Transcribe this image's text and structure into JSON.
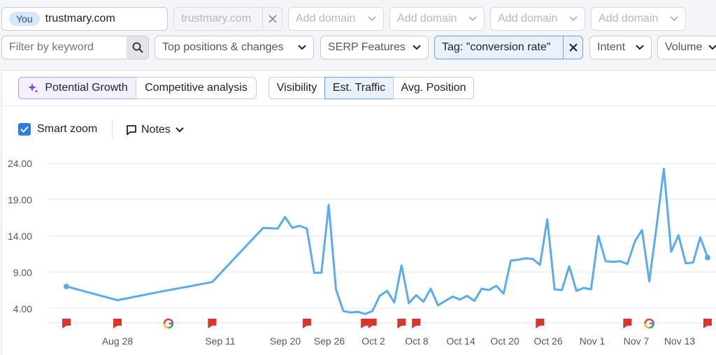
{
  "domains": {
    "you_badge": "You",
    "primary": "trustmary.com",
    "compare": "trustmary.com",
    "add_domain": [
      "Add domain",
      "Add domain",
      "Add domain",
      "Add domain"
    ]
  },
  "filters": {
    "keyword_placeholder": "Filter by keyword",
    "top_positions": "Top positions & changes",
    "serp_features": "SERP Features",
    "tag": "Tag: \"conversion rate\"",
    "intent": "Intent",
    "volume": "Volume"
  },
  "views": {
    "potential_growth": "Potential Growth",
    "competitive_analysis": "Competitive analysis",
    "metrics": [
      "Visibility",
      "Est. Traffic",
      "Avg. Position"
    ],
    "active_metric": "Est. Traffic"
  },
  "options": {
    "smart_zoom": "Smart zoom",
    "smart_zoom_checked": true,
    "notes": "Notes"
  },
  "colors": {
    "line": "#5aabf0",
    "note_marker": "#d9362b",
    "accent": "#2f7de1"
  },
  "chart_data": {
    "type": "line",
    "ylim": [
      2,
      24
    ],
    "yticks": [
      "24.00",
      "19.00",
      "14.00",
      "9.00",
      "4.00"
    ],
    "xticks": [
      "Aug 28",
      "Sep 11",
      "Sep 20",
      "Sep 26",
      "Oct 2",
      "Oct 8",
      "Oct 14",
      "Oct 20",
      "Oct 26",
      "Nov 1",
      "Nov 7",
      "Nov 13"
    ],
    "series": [
      {
        "values": [
          [
            "Aug 21",
            7.0
          ],
          [
            "Aug 28",
            5.1
          ],
          [
            "Sep 3",
            6.3
          ],
          [
            "Sep 10",
            7.6
          ],
          [
            "Sep 17",
            15.1
          ],
          [
            "Sep 19",
            15.0
          ],
          [
            "Sep 20",
            16.6
          ],
          [
            "Sep 21",
            15.1
          ],
          [
            "Sep 22",
            15.4
          ],
          [
            "Sep 23",
            15.0
          ],
          [
            "Sep 24",
            8.9
          ],
          [
            "Sep 25",
            8.9
          ],
          [
            "Sep 26",
            18.3
          ],
          [
            "Sep 27",
            6.6
          ],
          [
            "Sep 28",
            3.6
          ],
          [
            "Sep 29",
            3.4
          ],
          [
            "Sep 30",
            3.5
          ],
          [
            "Oct 1",
            3.2
          ],
          [
            "Oct 2",
            3.6
          ],
          [
            "Oct 3",
            5.7
          ],
          [
            "Oct 4",
            6.4
          ],
          [
            "Oct 5",
            4.8
          ],
          [
            "Oct 6",
            9.9
          ],
          [
            "Oct 7",
            4.7
          ],
          [
            "Oct 8",
            5.8
          ],
          [
            "Oct 9",
            4.9
          ],
          [
            "Oct 10",
            6.7
          ],
          [
            "Oct 11",
            4.4
          ],
          [
            "Oct 12",
            5.0
          ],
          [
            "Oct 13",
            5.6
          ],
          [
            "Oct 14",
            5.2
          ],
          [
            "Oct 15",
            5.7
          ],
          [
            "Oct 16",
            5.0
          ],
          [
            "Oct 17",
            6.7
          ],
          [
            "Oct 18",
            6.5
          ],
          [
            "Oct 19",
            7.1
          ],
          [
            "Oct 20",
            6.0
          ],
          [
            "Oct 21",
            10.6
          ],
          [
            "Oct 22",
            10.7
          ],
          [
            "Oct 23",
            10.9
          ],
          [
            "Oct 24",
            10.8
          ],
          [
            "Oct 25",
            10.0
          ],
          [
            "Oct 26",
            16.3
          ],
          [
            "Oct 27",
            6.6
          ],
          [
            "Oct 28",
            6.5
          ],
          [
            "Oct 29",
            9.8
          ],
          [
            "Oct 30",
            6.4
          ],
          [
            "Oct 31",
            6.8
          ],
          [
            "Nov 1",
            6.6
          ],
          [
            "Nov 2",
            14.0
          ],
          [
            "Nov 3",
            10.5
          ],
          [
            "Nov 4",
            10.4
          ],
          [
            "Nov 5",
            10.5
          ],
          [
            "Nov 6",
            10.1
          ],
          [
            "Nov 7",
            13.2
          ],
          [
            "Nov 8",
            14.8
          ],
          [
            "Nov 9",
            7.7
          ],
          [
            "Nov 10",
            15.3
          ],
          [
            "Nov 11",
            23.3
          ],
          [
            "Nov 12",
            11.8
          ],
          [
            "Nov 13",
            14.1
          ],
          [
            "Nov 14",
            10.2
          ],
          [
            "Nov 15",
            10.3
          ],
          [
            "Nov 16",
            13.8
          ],
          [
            "Nov 17",
            11.0
          ]
        ]
      }
    ],
    "note_markers": [
      "Aug 21",
      "Aug 28",
      "Sep 10",
      "Sep 23",
      "Oct 1",
      "Oct 2",
      "Oct 6",
      "Oct 8",
      "Oct 25",
      "Nov 6",
      "Nov 17"
    ],
    "google_updates": [
      "Sep 4",
      "Nov 9"
    ]
  }
}
